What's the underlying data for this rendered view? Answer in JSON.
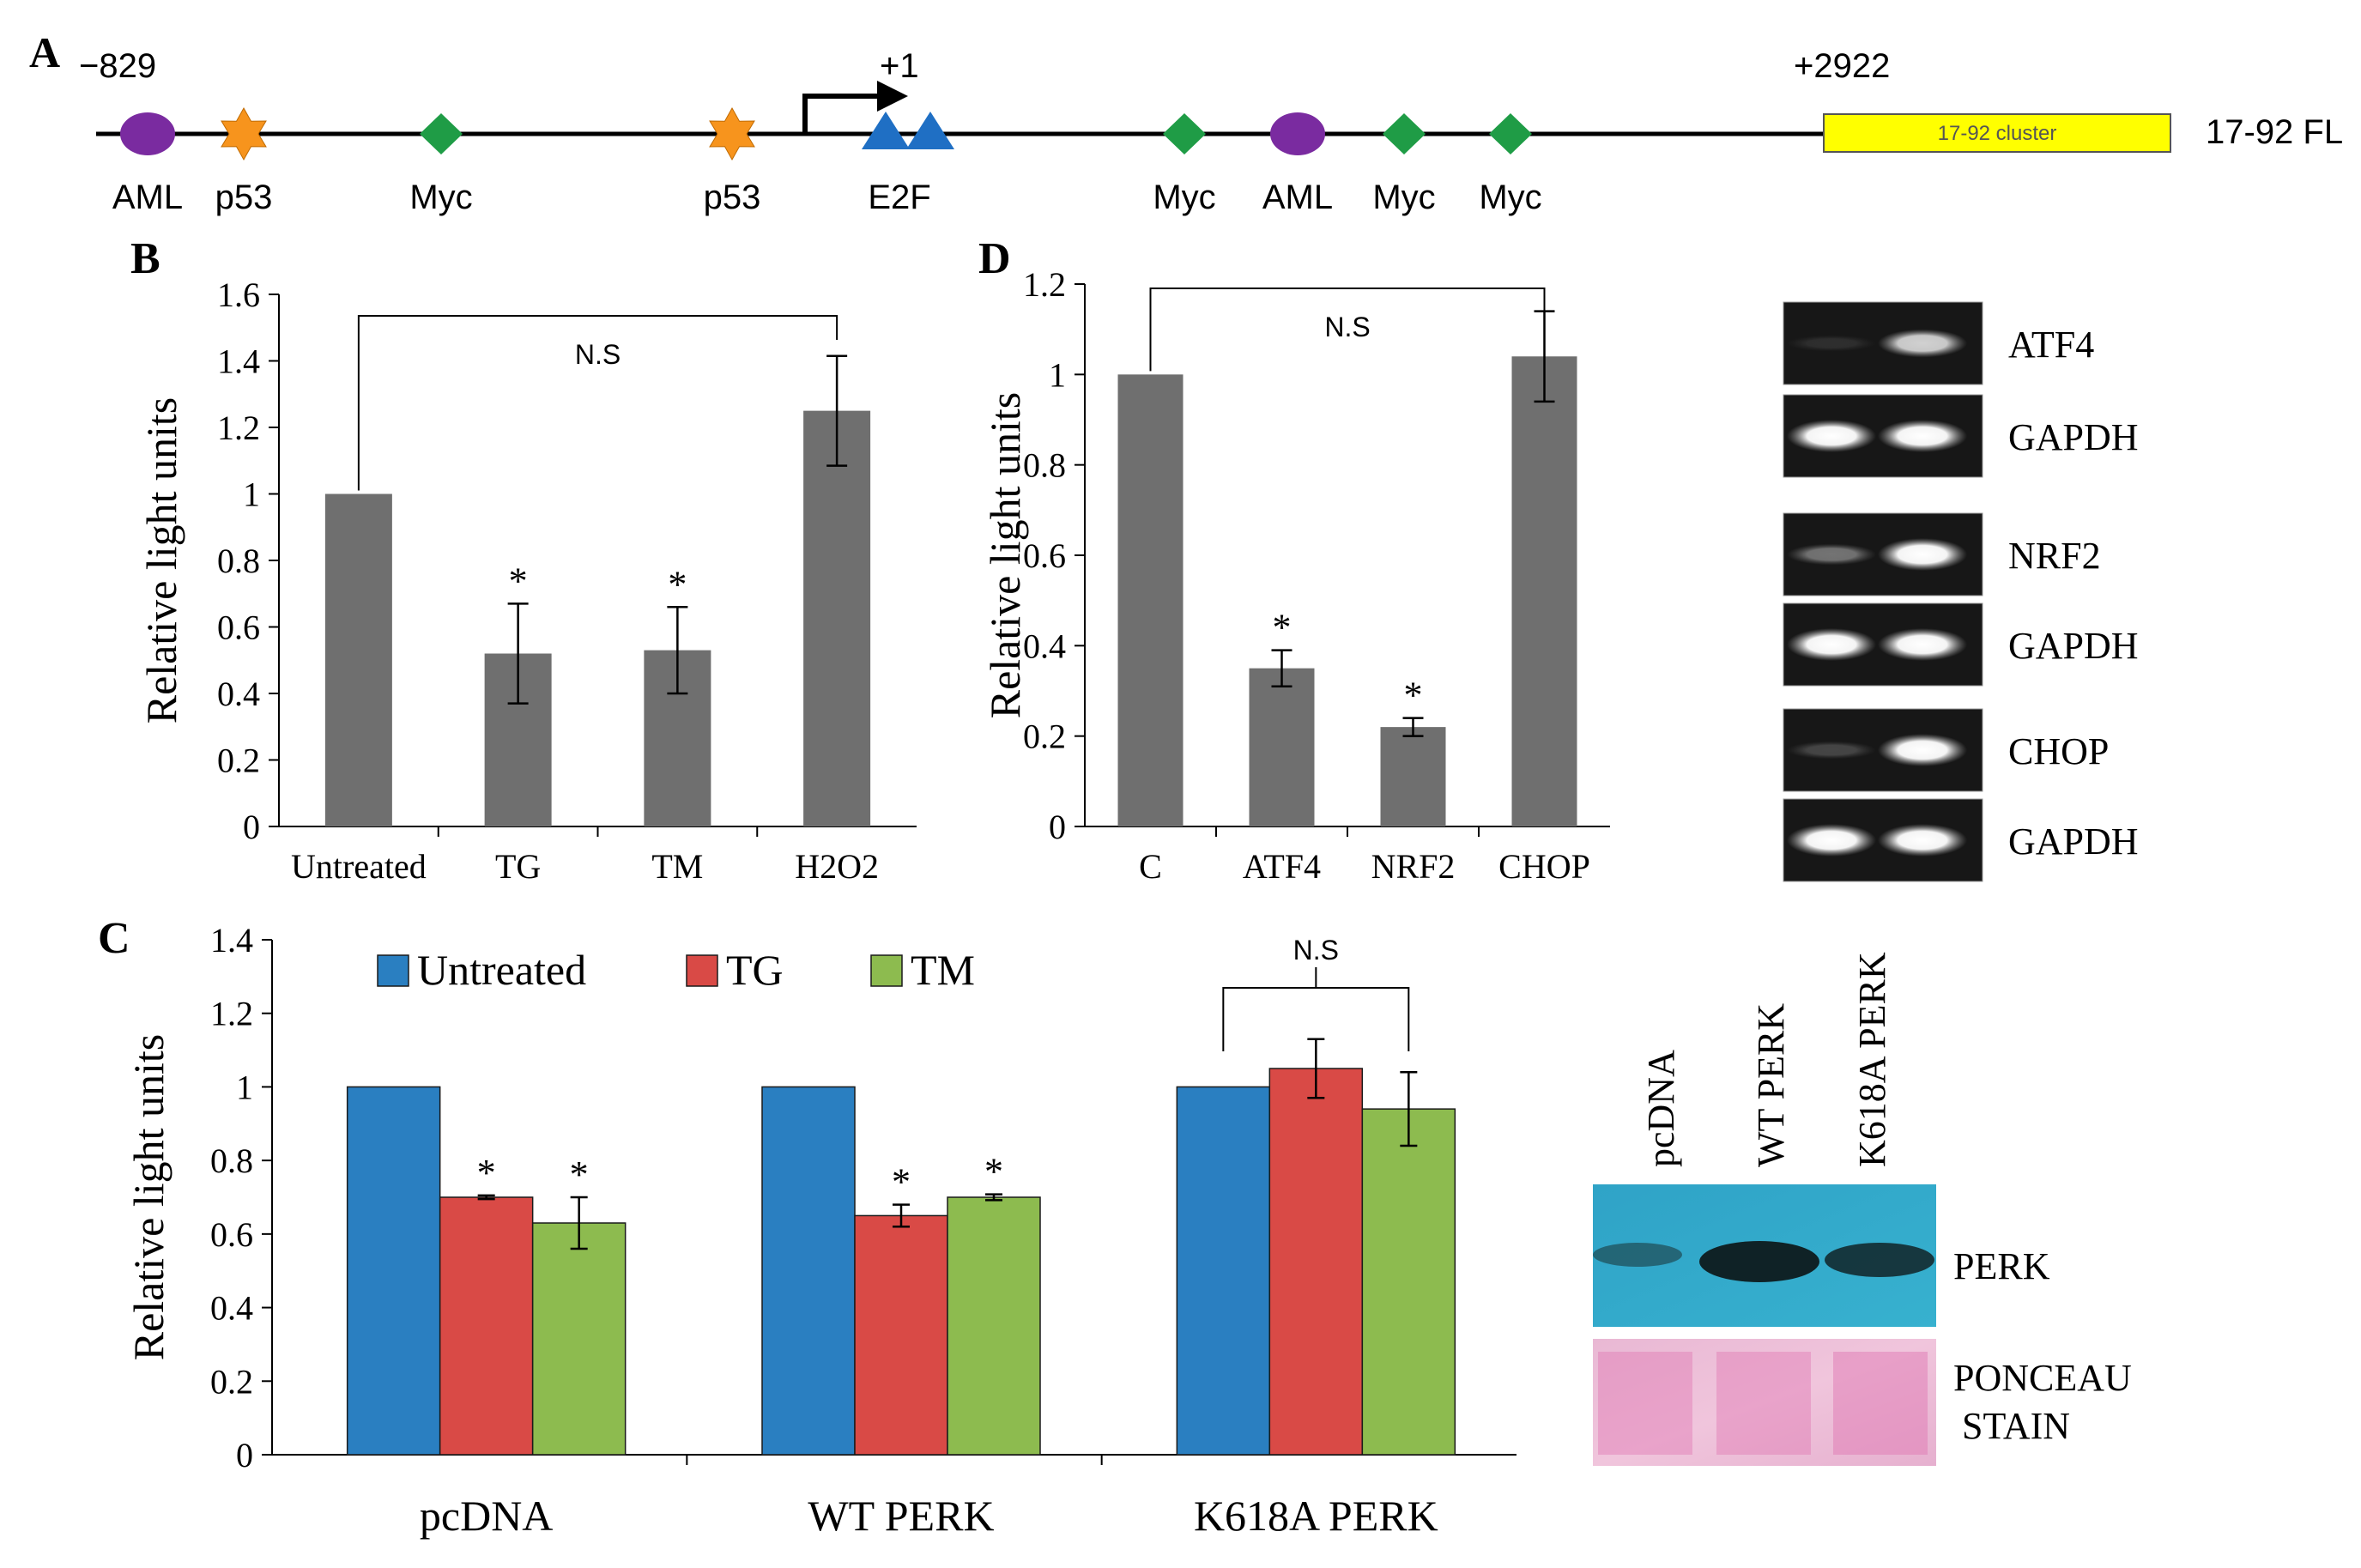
{
  "panel_letters": {
    "a": "A",
    "b": "B",
    "c": "C",
    "d": "D"
  },
  "colors": {
    "bar_gray": "#6f6f6f",
    "untreated": "#2a7fc1",
    "tg": "#d94a46",
    "tm": "#8dbb4f",
    "aml": "#7a2ba0",
    "p53": "#f7941d",
    "myc": "#1f9c46",
    "e2f": "#1f6fc4",
    "cluster": "#ffff00"
  },
  "promoter": {
    "start_label": "−829",
    "tss_label": "+1",
    "end_label": "+2922",
    "cluster_label": "17-92 cluster",
    "construct_label": "17-92 FL",
    "sites": [
      {
        "label": "AML",
        "shape": "ellipse",
        "color": "#7a2ba0"
      },
      {
        "label": "p53",
        "shape": "star",
        "color": "#f7941d"
      },
      {
        "label": "Myc",
        "shape": "diamond",
        "color": "#1f9c46"
      },
      {
        "label": "p53",
        "shape": "star",
        "color": "#f7941d"
      },
      {
        "label": "E2F",
        "shape": "triangles",
        "color": "#1f6fc4"
      },
      {
        "label": "Myc",
        "shape": "diamond",
        "color": "#1f9c46"
      },
      {
        "label": "AML",
        "shape": "ellipse",
        "color": "#7a2ba0"
      },
      {
        "label": "Myc",
        "shape": "diamond",
        "color": "#1f9c46"
      },
      {
        "label": "Myc",
        "shape": "diamond",
        "color": "#1f9c46"
      }
    ]
  },
  "chart_data": [
    {
      "panel": "B",
      "type": "bar",
      "ylabel": "Relative light units",
      "ylim": [
        0,
        1.6
      ],
      "yticks": [
        "0",
        "0.2",
        "0.4",
        "0.6",
        "0.8",
        "1",
        "1.2",
        "1.4",
        "1.6"
      ],
      "categories": [
        "Untreated",
        "TG",
        "TM",
        "H2O2"
      ],
      "values": [
        1.0,
        0.52,
        0.53,
        1.25
      ],
      "errors": [
        0.0,
        0.15,
        0.13,
        0.165
      ],
      "significance": [
        "",
        "*",
        "*",
        ""
      ],
      "bracket": {
        "from": 0,
        "to": 3,
        "label": "N.S"
      }
    },
    {
      "panel": "D",
      "type": "bar",
      "ylabel": "Relative light units",
      "ylim": [
        0,
        1.2
      ],
      "yticks": [
        "0",
        "0.2",
        "0.4",
        "0.6",
        "0.8",
        "1",
        "1.2"
      ],
      "categories": [
        "C",
        "ATF4",
        "NRF2",
        "CHOP"
      ],
      "values": [
        1.0,
        0.35,
        0.22,
        1.04
      ],
      "errors": [
        0.0,
        0.04,
        0.02,
        0.1
      ],
      "significance": [
        "",
        "*",
        "*",
        ""
      ],
      "bracket": {
        "from": 0,
        "to": 3,
        "label": "N.S"
      }
    },
    {
      "panel": "C",
      "type": "bar",
      "ylabel": "Relative light units",
      "ylim": [
        0,
        1.4
      ],
      "yticks": [
        "0",
        "0.2",
        "0.4",
        "0.6",
        "0.8",
        "1",
        "1.2",
        "1.4"
      ],
      "categories": [
        "pcDNA",
        "WT PERK",
        "K618A PERK"
      ],
      "legend_position": "top",
      "series": [
        {
          "name": "Untreated",
          "values": [
            1.0,
            1.0,
            1.0
          ],
          "errors": [
            0,
            0,
            0
          ],
          "significance": [
            "",
            "",
            ""
          ]
        },
        {
          "name": "TG",
          "values": [
            0.7,
            0.65,
            1.05
          ],
          "errors": [
            0.005,
            0.03,
            0.08
          ],
          "significance": [
            "*",
            "*",
            ""
          ]
        },
        {
          "name": "TM",
          "values": [
            0.63,
            0.7,
            0.94
          ],
          "errors": [
            0.07,
            0.008,
            0.1
          ],
          "significance": [
            "*",
            "*",
            ""
          ]
        }
      ],
      "bracket": {
        "group": 2,
        "label": "N.S"
      }
    }
  ],
  "gel_d": {
    "rows": [
      {
        "label": "ATF4",
        "bands": [
          0.05,
          0.75
        ]
      },
      {
        "label": "GAPDH",
        "bands": [
          1.0,
          1.0
        ]
      },
      {
        "label": "NRF2",
        "bands": [
          0.35,
          1.0
        ]
      },
      {
        "label": "GAPDH",
        "bands": [
          1.0,
          1.0
        ]
      },
      {
        "label": "CHOP",
        "bands": [
          0.15,
          1.0
        ]
      },
      {
        "label": "GAPDH",
        "bands": [
          1.0,
          1.0
        ]
      }
    ]
  },
  "western_c": {
    "lanes": [
      "pcDNA",
      "WT PERK",
      "K618A PERK"
    ],
    "blot_label": "PERK",
    "stain_label_line1": "PONCEAU",
    "stain_label_line2": "STAIN"
  }
}
